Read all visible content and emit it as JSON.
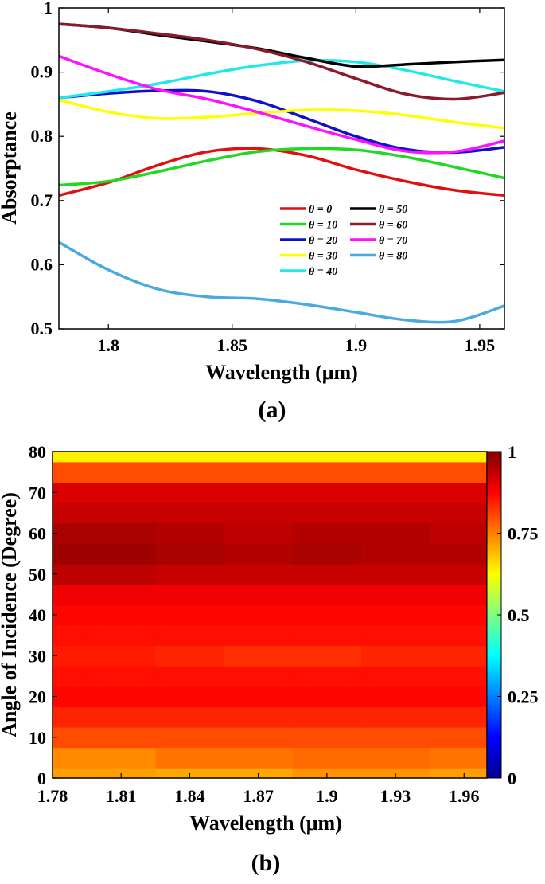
{
  "chart_data": [
    {
      "type": "line",
      "panel_label": "(a)",
      "xlabel": "Wavelength (μm)",
      "ylabel": "Absorptance",
      "xlim": [
        1.78,
        1.96
      ],
      "ylim": [
        0.5,
        1.0
      ],
      "xticks": [
        1.8,
        1.85,
        1.9,
        1.95
      ],
      "xtick_labels": [
        "1.8",
        "1.85",
        "1.9",
        "1.95"
      ],
      "yticks": [
        0.5,
        0.6,
        0.7,
        0.8,
        0.9,
        1.0
      ],
      "ytick_labels": [
        "0.5",
        "0.6",
        "0.7",
        "0.8",
        "0.9",
        "1"
      ],
      "legend_placement": "lower-right",
      "x": [
        1.78,
        1.8,
        1.82,
        1.84,
        1.86,
        1.88,
        1.9,
        1.92,
        1.94,
        1.96
      ],
      "series": [
        {
          "name": "θ = 0",
          "color": "#e01010",
          "values": [
            0.708,
            0.728,
            0.755,
            0.776,
            0.781,
            0.77,
            0.748,
            0.73,
            0.716,
            0.708
          ]
        },
        {
          "name": "θ = 10",
          "color": "#22d822",
          "values": [
            0.724,
            0.73,
            0.745,
            0.762,
            0.776,
            0.781,
            0.779,
            0.768,
            0.752,
            0.735
          ]
        },
        {
          "name": "θ = 20",
          "color": "#1010c8",
          "values": [
            0.86,
            0.867,
            0.871,
            0.87,
            0.855,
            0.828,
            0.8,
            0.78,
            0.775,
            0.783
          ]
        },
        {
          "name": "θ = 30",
          "color": "#ffff00",
          "values": [
            0.857,
            0.838,
            0.828,
            0.83,
            0.836,
            0.841,
            0.84,
            0.833,
            0.822,
            0.813
          ]
        },
        {
          "name": "θ = 40",
          "color": "#22e8e8",
          "values": [
            0.86,
            0.87,
            0.882,
            0.897,
            0.91,
            0.918,
            0.916,
            0.903,
            0.886,
            0.87
          ]
        },
        {
          "name": "θ = 50",
          "color": "#000000",
          "values": [
            0.975,
            0.969,
            0.958,
            0.948,
            0.937,
            0.922,
            0.909,
            0.912,
            0.916,
            0.919
          ]
        },
        {
          "name": "θ = 60",
          "color": "#8b1a2a",
          "values": [
            0.975,
            0.969,
            0.96,
            0.95,
            0.936,
            0.916,
            0.89,
            0.866,
            0.858,
            0.868
          ]
        },
        {
          "name": "θ = 70",
          "color": "#ff10ff",
          "values": [
            0.925,
            0.897,
            0.873,
            0.858,
            0.838,
            0.816,
            0.795,
            0.777,
            0.776,
            0.793
          ]
        },
        {
          "name": "θ = 80",
          "color": "#48aadf",
          "values": [
            0.635,
            0.592,
            0.562,
            0.55,
            0.547,
            0.538,
            0.526,
            0.514,
            0.512,
            0.536
          ]
        }
      ]
    },
    {
      "type": "heatmap",
      "panel_label": "(b)",
      "xlabel": "Wavelength (μm)",
      "ylabel": "Angle of Incidence (Degree)",
      "xlim": [
        1.78,
        1.97
      ],
      "ylim": [
        0,
        80
      ],
      "xticks": [
        1.78,
        1.81,
        1.84,
        1.87,
        1.9,
        1.93,
        1.96
      ],
      "xtick_labels": [
        "1.78",
        "1.81",
        "1.84",
        "1.87",
        "1.9",
        "1.93",
        "1.96"
      ],
      "yticks": [
        0,
        10,
        20,
        30,
        40,
        50,
        60,
        70,
        80
      ],
      "ytick_labels": [
        "0",
        "10",
        "20",
        "30",
        "40",
        "50",
        "60",
        "70",
        "80"
      ],
      "colorbar_range": [
        0,
        1
      ],
      "colorbar_ticks": [
        0,
        0.25,
        0.5,
        0.75,
        1
      ],
      "colorbar_tick_labels": [
        "0",
        "0.25",
        "0.5",
        "0.75",
        "1"
      ],
      "colormap": "jet",
      "x": [
        1.78,
        1.81,
        1.84,
        1.87,
        1.9,
        1.93,
        1.96
      ],
      "y": [
        0,
        5,
        10,
        15,
        20,
        25,
        30,
        35,
        40,
        45,
        50,
        55,
        60,
        65,
        70,
        75,
        80
      ],
      "values": [
        [
          0.72,
          0.72,
          0.71,
          0.71,
          0.73,
          0.73,
          0.72
        ],
        [
          0.74,
          0.74,
          0.76,
          0.76,
          0.77,
          0.77,
          0.76
        ],
        [
          0.8,
          0.8,
          0.8,
          0.8,
          0.8,
          0.8,
          0.8
        ],
        [
          0.84,
          0.84,
          0.84,
          0.84,
          0.84,
          0.84,
          0.84
        ],
        [
          0.87,
          0.87,
          0.87,
          0.87,
          0.87,
          0.87,
          0.87
        ],
        [
          0.86,
          0.86,
          0.86,
          0.86,
          0.86,
          0.86,
          0.86
        ],
        [
          0.85,
          0.85,
          0.84,
          0.83,
          0.83,
          0.84,
          0.84
        ],
        [
          0.86,
          0.86,
          0.86,
          0.86,
          0.86,
          0.86,
          0.86
        ],
        [
          0.87,
          0.87,
          0.87,
          0.87,
          0.87,
          0.87,
          0.87
        ],
        [
          0.89,
          0.89,
          0.89,
          0.89,
          0.89,
          0.89,
          0.89
        ],
        [
          0.94,
          0.94,
          0.93,
          0.93,
          0.93,
          0.93,
          0.93
        ],
        [
          0.97,
          0.97,
          0.96,
          0.95,
          0.96,
          0.95,
          0.95
        ],
        [
          0.96,
          0.96,
          0.95,
          0.94,
          0.95,
          0.95,
          0.94
        ],
        [
          0.93,
          0.93,
          0.93,
          0.93,
          0.93,
          0.93,
          0.93
        ],
        [
          0.91,
          0.91,
          0.91,
          0.91,
          0.91,
          0.91,
          0.91
        ],
        [
          0.8,
          0.8,
          0.8,
          0.8,
          0.8,
          0.8,
          0.8
        ],
        [
          0.64,
          0.64,
          0.64,
          0.64,
          0.64,
          0.64,
          0.64
        ]
      ]
    }
  ]
}
